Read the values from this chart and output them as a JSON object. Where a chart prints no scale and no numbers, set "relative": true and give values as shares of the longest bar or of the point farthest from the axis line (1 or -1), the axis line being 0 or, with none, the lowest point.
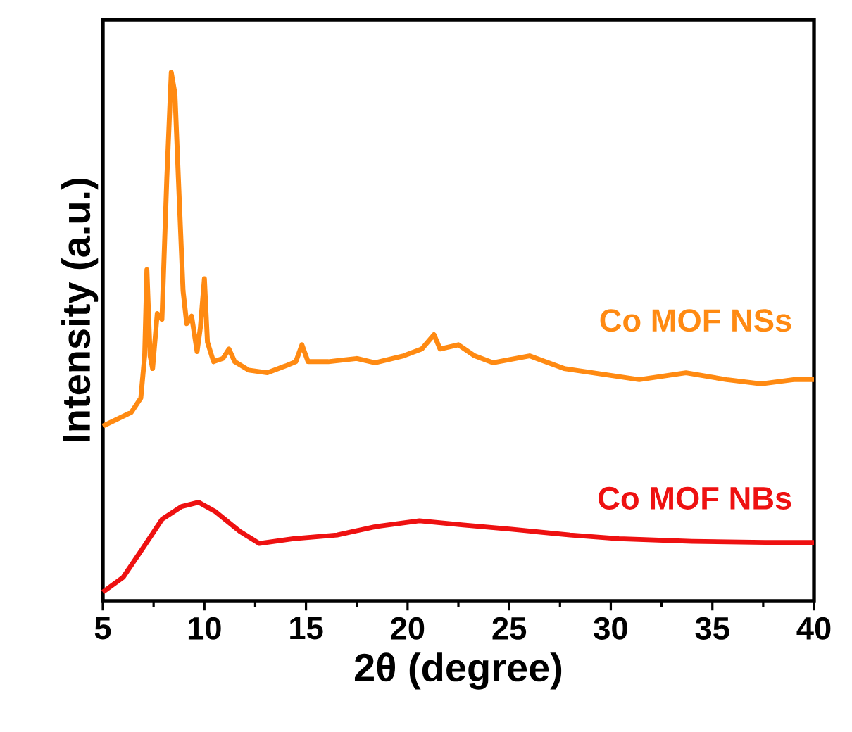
{
  "chart_data": {
    "type": "line",
    "relative": true,
    "xlabel": "2θ (degree)",
    "ylabel": "Intensity (a.u.)",
    "xlim": [
      5,
      40
    ],
    "xticks": [
      5,
      10,
      15,
      20,
      25,
      30,
      35,
      40
    ],
    "tick_labels": "x",
    "series": [
      {
        "name": "Co MOF NSs",
        "color": "#ff8a12",
        "x": [
          5.0,
          6.4,
          6.87,
          7.06,
          7.17,
          7.33,
          7.45,
          7.68,
          7.91,
          8.15,
          8.37,
          8.55,
          8.72,
          8.95,
          9.13,
          9.37,
          9.64,
          9.8,
          10.0,
          10.15,
          10.45,
          10.91,
          11.21,
          11.49,
          12.18,
          13.1,
          14.0,
          14.5,
          14.8,
          15.1,
          16.1,
          17.5,
          18.4,
          19.8,
          20.7,
          21.3,
          21.6,
          22.5,
          23.3,
          24.2,
          26.0,
          27.7,
          30.0,
          31.4,
          33.7,
          35.7,
          37.4,
          39.0,
          40.0
        ],
        "values": [
          0.331,
          0.357,
          0.384,
          0.464,
          0.627,
          0.464,
          0.44,
          0.544,
          0.533,
          0.8,
          1.0,
          0.96,
          0.8,
          0.587,
          0.525,
          0.539,
          0.472,
          0.517,
          0.61,
          0.49,
          0.453,
          0.459,
          0.477,
          0.453,
          0.437,
          0.432,
          0.445,
          0.453,
          0.485,
          0.453,
          0.453,
          0.459,
          0.451,
          0.464,
          0.477,
          0.504,
          0.477,
          0.485,
          0.464,
          0.451,
          0.464,
          0.44,
          0.427,
          0.419,
          0.432,
          0.419,
          0.411,
          0.419,
          0.419
        ]
      },
      {
        "name": "Co MOF NBs",
        "color": "#ee1111",
        "x": [
          5.0,
          6.0,
          6.97,
          7.92,
          8.88,
          9.71,
          10.55,
          11.74,
          12.7,
          14.38,
          16.53,
          18.44,
          20.58,
          22.74,
          25.1,
          28.0,
          30.4,
          34.0,
          37.6,
          40.0
        ],
        "values": [
          0.017,
          0.045,
          0.1,
          0.155,
          0.179,
          0.187,
          0.169,
          0.132,
          0.109,
          0.118,
          0.125,
          0.141,
          0.152,
          0.144,
          0.136,
          0.125,
          0.118,
          0.113,
          0.111,
          0.111
        ]
      }
    ]
  }
}
